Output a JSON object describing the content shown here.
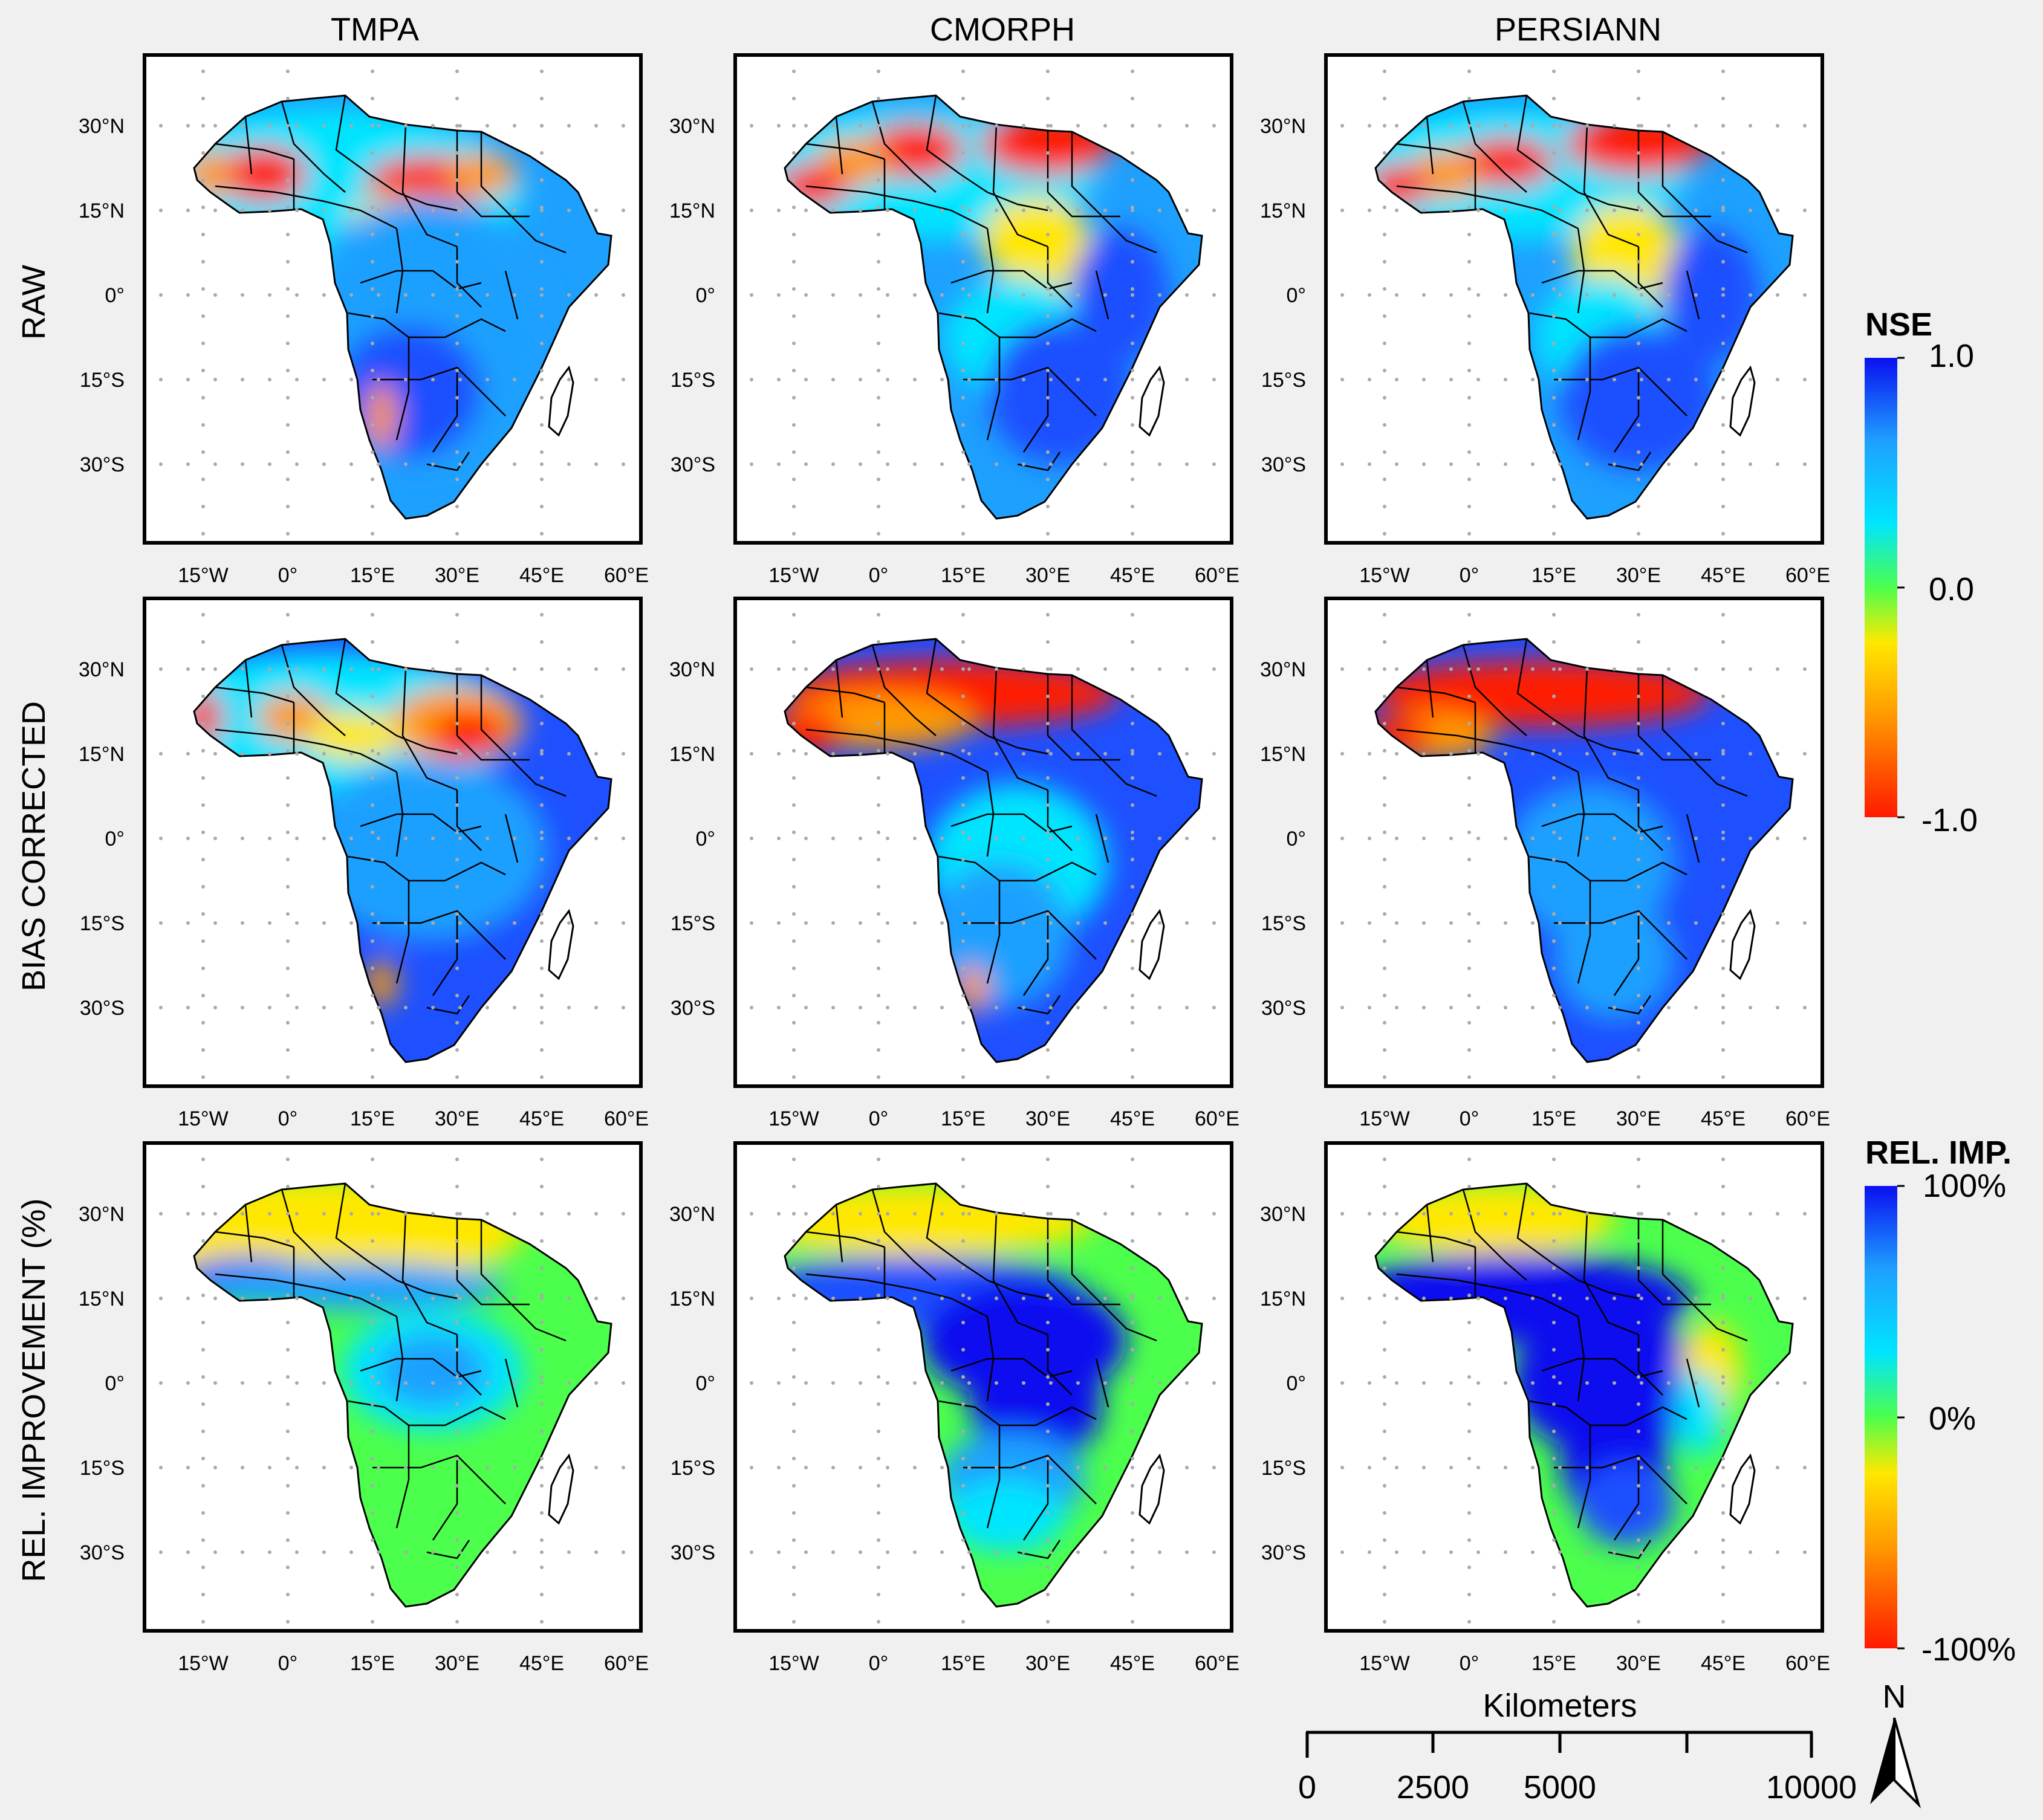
{
  "columns": [
    "TMPA",
    "CMORPH",
    "PERSIANN"
  ],
  "rows": [
    {
      "key": "raw",
      "label": "RAW"
    },
    {
      "key": "bias",
      "label": "BIAS CORRECTED"
    },
    {
      "key": "rel",
      "label": "REL. IMPROVEMENT (%)"
    }
  ],
  "lat_ticks": [
    "30°N",
    "15°N",
    "0°",
    "15°S",
    "30°S"
  ],
  "lon_ticks": [
    "15°W",
    "0°",
    "15°E",
    "30°E",
    "45°E",
    "60°E"
  ],
  "legends": {
    "nse": {
      "title": "NSE",
      "max": "1.0",
      "mid": "0.0",
      "min": "-1.0"
    },
    "rel": {
      "title": "REL. IMP.",
      "max": "100%",
      "mid": "0%",
      "min": "-100%"
    }
  },
  "scale_bar": {
    "title": "Kilometers",
    "labels": [
      "0",
      "2500",
      "5000",
      "10000"
    ]
  },
  "north_arrow": {
    "label": "N"
  },
  "colors": {
    "red": "#ff1a00",
    "orange": "#ff9900",
    "yellow": "#ffe800",
    "green": "#4cff4c",
    "cyan": "#00e5ff",
    "light_blue": "#1ea0ff",
    "blue": "#1e50ff",
    "dark_blue": "#0a10f0"
  }
}
